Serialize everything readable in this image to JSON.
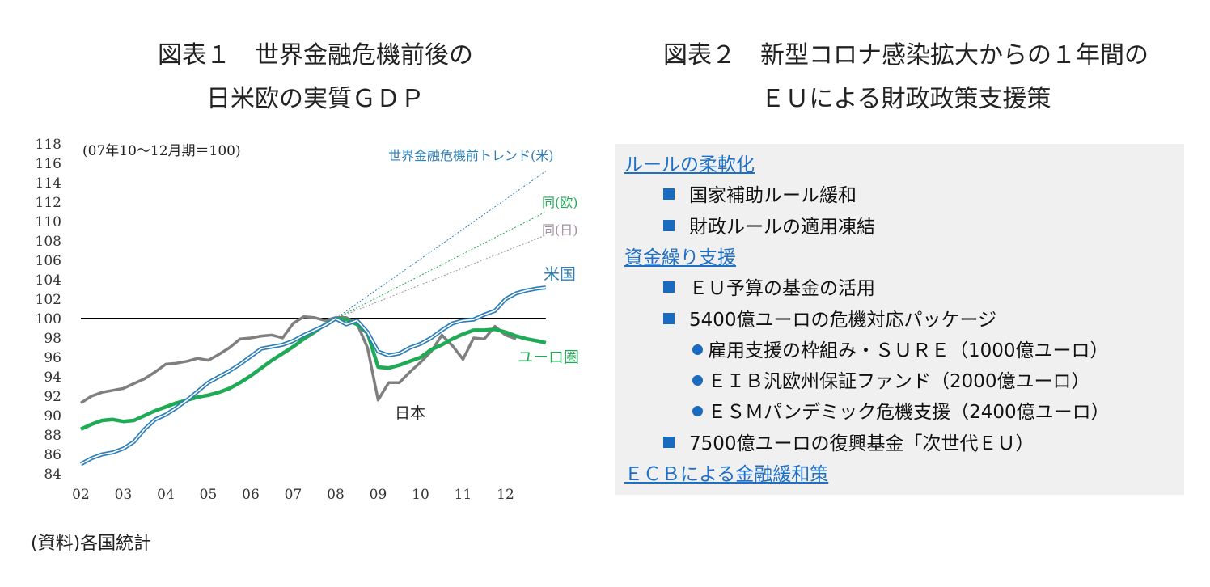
{
  "titles": {
    "fig1_line1": "図表１　世界金融危機前後の",
    "fig1_line2": "日米欧の実質ＧＤＰ",
    "fig2_line1": "図表２　新型コロナ感染拡大からの１年間の",
    "fig2_line2": "ＥＵによる財政政策支援策"
  },
  "source": "(資料)各国統計",
  "colors": {
    "us": "#2e7fb8",
    "euro": "#1faa55",
    "japan": "#7f7f7f",
    "trend_jp": "#a090a0",
    "baseline": "#000000",
    "panel_bg": "#f0f0f0",
    "link": "#1f6fc4"
  },
  "chart_data": {
    "type": "line",
    "annotation": "(07年10～12月期＝100)",
    "x_ticks": [
      "02",
      "03",
      "04",
      "05",
      "06",
      "07",
      "08",
      "09",
      "10",
      "11",
      "12"
    ],
    "ylim": [
      84,
      118
    ],
    "y_ticks": [
      84,
      86,
      88,
      90,
      92,
      94,
      96,
      98,
      100,
      102,
      104,
      106,
      108,
      110,
      112,
      114,
      116,
      118
    ],
    "baseline": 100,
    "series": [
      {
        "name": "米国",
        "style": "double",
        "color": "#2e7fb8",
        "points": [
          [
            2002.0,
            85.0
          ],
          [
            2002.25,
            85.6
          ],
          [
            2002.5,
            86.0
          ],
          [
            2002.75,
            86.2
          ],
          [
            2003.0,
            86.6
          ],
          [
            2003.25,
            87.3
          ],
          [
            2003.5,
            88.6
          ],
          [
            2003.75,
            89.6
          ],
          [
            2004.0,
            90.1
          ],
          [
            2004.25,
            90.8
          ],
          [
            2004.5,
            91.6
          ],
          [
            2004.75,
            92.5
          ],
          [
            2005.0,
            93.4
          ],
          [
            2005.25,
            94.0
          ],
          [
            2005.5,
            94.6
          ],
          [
            2005.75,
            95.3
          ],
          [
            2006.0,
            96.1
          ],
          [
            2006.25,
            96.9
          ],
          [
            2006.5,
            97.1
          ],
          [
            2006.75,
            97.3
          ],
          [
            2007.0,
            97.7
          ],
          [
            2007.25,
            98.3
          ],
          [
            2007.5,
            98.8
          ],
          [
            2007.75,
            99.3
          ],
          [
            2008.0,
            100.0
          ],
          [
            2008.25,
            99.4
          ],
          [
            2008.5,
            99.8
          ],
          [
            2008.75,
            98.6
          ],
          [
            2009.0,
            96.6
          ],
          [
            2009.25,
            96.2
          ],
          [
            2009.5,
            96.4
          ],
          [
            2009.75,
            97.0
          ],
          [
            2010.0,
            97.4
          ],
          [
            2010.25,
            98.0
          ],
          [
            2010.5,
            98.8
          ],
          [
            2010.75,
            99.5
          ],
          [
            2011.0,
            99.8
          ],
          [
            2011.25,
            99.9
          ],
          [
            2011.5,
            100.4
          ],
          [
            2011.75,
            100.8
          ],
          [
            2012.0,
            102.0
          ],
          [
            2012.25,
            102.6
          ],
          [
            2012.5,
            102.9
          ],
          [
            2012.75,
            103.1
          ],
          [
            2012.95,
            103.2
          ]
        ]
      },
      {
        "name": "ユーロ圏",
        "style": "thick",
        "color": "#1faa55",
        "points": [
          [
            2002.0,
            88.6
          ],
          [
            2002.25,
            89.1
          ],
          [
            2002.5,
            89.5
          ],
          [
            2002.75,
            89.6
          ],
          [
            2003.0,
            89.4
          ],
          [
            2003.25,
            89.5
          ],
          [
            2003.5,
            90.0
          ],
          [
            2003.75,
            90.5
          ],
          [
            2004.0,
            90.9
          ],
          [
            2004.25,
            91.3
          ],
          [
            2004.5,
            91.6
          ],
          [
            2004.75,
            91.9
          ],
          [
            2005.0,
            92.1
          ],
          [
            2005.25,
            92.4
          ],
          [
            2005.5,
            92.8
          ],
          [
            2005.75,
            93.4
          ],
          [
            2006.0,
            94.1
          ],
          [
            2006.25,
            94.9
          ],
          [
            2006.5,
            95.7
          ],
          [
            2006.75,
            96.4
          ],
          [
            2007.0,
            97.1
          ],
          [
            2007.25,
            97.9
          ],
          [
            2007.5,
            98.6
          ],
          [
            2007.75,
            99.4
          ],
          [
            2008.0,
            100.0
          ],
          [
            2008.25,
            99.9
          ],
          [
            2008.5,
            99.4
          ],
          [
            2008.75,
            98.5
          ],
          [
            2009.0,
            95.0
          ],
          [
            2009.25,
            94.9
          ],
          [
            2009.5,
            95.2
          ],
          [
            2009.75,
            95.6
          ],
          [
            2010.0,
            96.0
          ],
          [
            2010.25,
            96.8
          ],
          [
            2010.5,
            97.3
          ],
          [
            2010.75,
            97.9
          ],
          [
            2011.0,
            98.4
          ],
          [
            2011.25,
            98.8
          ],
          [
            2011.5,
            98.8
          ],
          [
            2011.75,
            98.9
          ],
          [
            2012.0,
            98.6
          ],
          [
            2012.25,
            98.2
          ],
          [
            2012.5,
            97.9
          ],
          [
            2012.75,
            97.7
          ],
          [
            2012.95,
            97.5
          ]
        ]
      },
      {
        "name": "日本",
        "style": "solid",
        "color": "#7f7f7f",
        "points": [
          [
            2002.0,
            91.3
          ],
          [
            2002.25,
            92.0
          ],
          [
            2002.5,
            92.4
          ],
          [
            2002.75,
            92.6
          ],
          [
            2003.0,
            92.8
          ],
          [
            2003.25,
            93.3
          ],
          [
            2003.5,
            93.8
          ],
          [
            2003.75,
            94.5
          ],
          [
            2004.0,
            95.3
          ],
          [
            2004.25,
            95.4
          ],
          [
            2004.5,
            95.6
          ],
          [
            2004.75,
            95.9
          ],
          [
            2005.0,
            95.7
          ],
          [
            2005.25,
            96.3
          ],
          [
            2005.5,
            97.0
          ],
          [
            2005.75,
            97.9
          ],
          [
            2006.0,
            98.0
          ],
          [
            2006.25,
            98.2
          ],
          [
            2006.5,
            98.3
          ],
          [
            2006.75,
            98.0
          ],
          [
            2007.0,
            99.5
          ],
          [
            2007.25,
            100.2
          ],
          [
            2007.5,
            100.1
          ],
          [
            2007.75,
            99.8
          ],
          [
            2008.0,
            100.1
          ],
          [
            2008.25,
            100.1
          ],
          [
            2008.5,
            99.5
          ],
          [
            2008.75,
            97.0
          ],
          [
            2009.0,
            91.6
          ],
          [
            2009.25,
            93.4
          ],
          [
            2009.5,
            93.4
          ],
          [
            2009.75,
            94.5
          ],
          [
            2010.0,
            95.5
          ],
          [
            2010.25,
            96.6
          ],
          [
            2010.5,
            98.3
          ],
          [
            2010.75,
            97.2
          ],
          [
            2011.0,
            95.8
          ],
          [
            2011.25,
            98.0
          ],
          [
            2011.5,
            97.9
          ],
          [
            2011.75,
            99.2
          ],
          [
            2012.0,
            98.3
          ],
          [
            2012.25,
            97.9
          ]
        ]
      },
      {
        "name": "世界金融危機前トレンド(米)",
        "style": "dotted",
        "color": "#2e7fb8",
        "points": [
          [
            2008.0,
            100.0
          ],
          [
            2012.95,
            115.2
          ]
        ]
      },
      {
        "name": "同(欧)",
        "style": "dotted",
        "color": "#1faa55",
        "points": [
          [
            2008.0,
            100.0
          ],
          [
            2012.95,
            111.0
          ]
        ]
      },
      {
        "name": "同(日)",
        "style": "dotted",
        "color": "#a090a0",
        "points": [
          [
            2008.0,
            100.0
          ],
          [
            2012.95,
            108.6
          ]
        ]
      }
    ]
  },
  "panel": {
    "items": [
      {
        "kind": "cat",
        "text": "ルールの柔軟化"
      },
      {
        "kind": "sq",
        "text": "国家補助ルール緩和"
      },
      {
        "kind": "sq",
        "text": "財政ルールの適用凍結"
      },
      {
        "kind": "cat",
        "text": "資金繰り支援"
      },
      {
        "kind": "sq",
        "text": "ＥＵ予算の基金の活用"
      },
      {
        "kind": "sq",
        "text": "5400億ユーロの危機対応パッケージ"
      },
      {
        "kind": "dot",
        "text": "雇用支援の枠組み・ＳＵＲＥ（1000億ユーロ）"
      },
      {
        "kind": "dot",
        "text": "ＥＩＢ汎欧州保証ファンド（2000億ユーロ）"
      },
      {
        "kind": "dot",
        "text": "ＥＳＭパンデミック危機支援（2400億ユーロ）"
      },
      {
        "kind": "sq",
        "text": "7500億ユーロの復興基金「次世代ＥＵ）"
      },
      {
        "kind": "cat",
        "text": "ＥＣＢによる金融緩和策"
      }
    ]
  }
}
